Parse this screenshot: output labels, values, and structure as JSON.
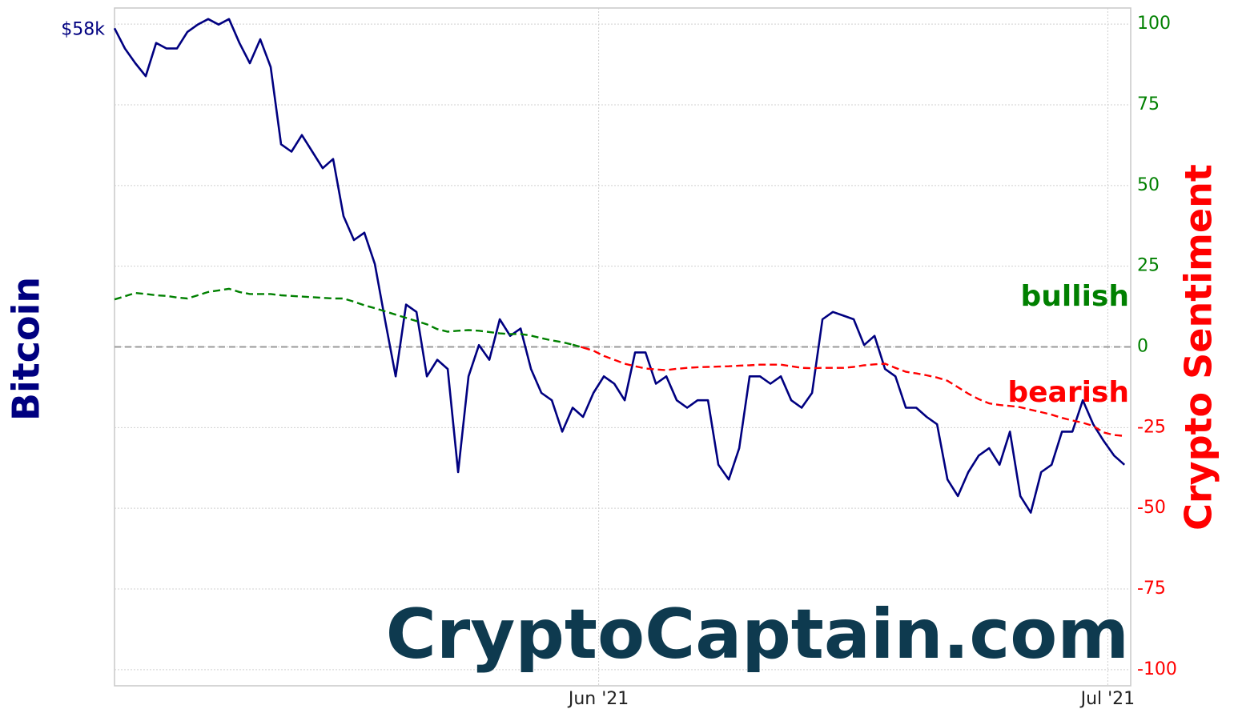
{
  "chart_data": {
    "type": "line",
    "y_label": "Bitcoin",
    "y2_label": "Crypto Sentiment",
    "watermark": "CryptoCaptain.com",
    "annotations": [
      {
        "text": "bullish",
        "color": "#008000"
      },
      {
        "text": "bearish",
        "color": "#ff0000"
      }
    ],
    "xlim": [
      0,
      97.6
    ],
    "xticks": [
      {
        "value": 46.5,
        "label": "Jun '21"
      },
      {
        "value": 95.4,
        "label": "Jul '21"
      }
    ],
    "ylim": [
      22400,
      59200
    ],
    "yticks": [
      {
        "value": 58000,
        "label": "$58k"
      }
    ],
    "y2lim": [
      -105,
      105
    ],
    "y2ticks": [
      100,
      75,
      50,
      25,
      0,
      -25,
      -50,
      -75,
      -100
    ],
    "reference_line": 0,
    "grid": true,
    "series": [
      {
        "color": "#000080",
        "values": [
          58100,
          57000,
          56200,
          55500,
          57300,
          57000,
          57000,
          57900,
          58300,
          58600,
          58300,
          58600,
          57300,
          56200,
          57500,
          56000,
          51800,
          51400,
          52300,
          51400,
          50500,
          51000,
          47900,
          46600,
          47000,
          45300,
          42200,
          39200,
          43100,
          42700,
          39200,
          40100,
          39600,
          34000,
          39200,
          40900,
          40100,
          42300,
          41400,
          41800,
          39600,
          38300,
          37900,
          36200,
          37500,
          37000,
          38300,
          39200,
          38800,
          37900,
          40500,
          40500,
          38800,
          39200,
          37900,
          37500,
          37900,
          37900,
          34400,
          33600,
          35300,
          39200,
          39200,
          38800,
          39200,
          37900,
          37500,
          38300,
          42300,
          42700,
          42500,
          42300,
          40900,
          41400,
          39600,
          39200,
          37500,
          37500,
          37000,
          36600,
          33600,
          32700,
          34000,
          34900,
          35300,
          34400,
          36200,
          32700,
          31800,
          34000,
          34400,
          36200,
          36200,
          37900,
          36600,
          35700,
          34900,
          34400
        ]
      },
      {
        "axis": "y2",
        "color": "#008000",
        "negative_color": "#ff0000",
        "dashed": true,
        "values": [
          14.7,
          15.7,
          16.7,
          16.4,
          16,
          15.8,
          15.3,
          15,
          16,
          17,
          17.5,
          18,
          17,
          16.4,
          16.4,
          16.4,
          16,
          15.8,
          15.6,
          15.4,
          15.2,
          15,
          15,
          14,
          12.9,
          12,
          11,
          10,
          9,
          8,
          7,
          5.5,
          4.7,
          5,
          5.2,
          5,
          4.6,
          4.2,
          4,
          4,
          3.5,
          2.7,
          2,
          1.5,
          0.7,
          -0.2,
          -1.2,
          -2.8,
          -4,
          -5.2,
          -6,
          -6.7,
          -7,
          -7.2,
          -6.8,
          -6.5,
          -6.3,
          -6.2,
          -6.1,
          -6,
          -5.8,
          -5.7,
          -5.5,
          -5.5,
          -5.5,
          -6,
          -6.5,
          -6.6,
          -6.5,
          -6.5,
          -6.5,
          -6.2,
          -5.7,
          -5.4,
          -5.2,
          -6.5,
          -7.7,
          -8.2,
          -8.8,
          -9.5,
          -10.5,
          -12.5,
          -14.5,
          -16.2,
          -17.5,
          -18,
          -18.3,
          -18.7,
          -19.5,
          -20.2,
          -21,
          -22,
          -22.8,
          -23.5,
          -24.5,
          -26.5,
          -27.3,
          -27.6
        ]
      }
    ]
  }
}
